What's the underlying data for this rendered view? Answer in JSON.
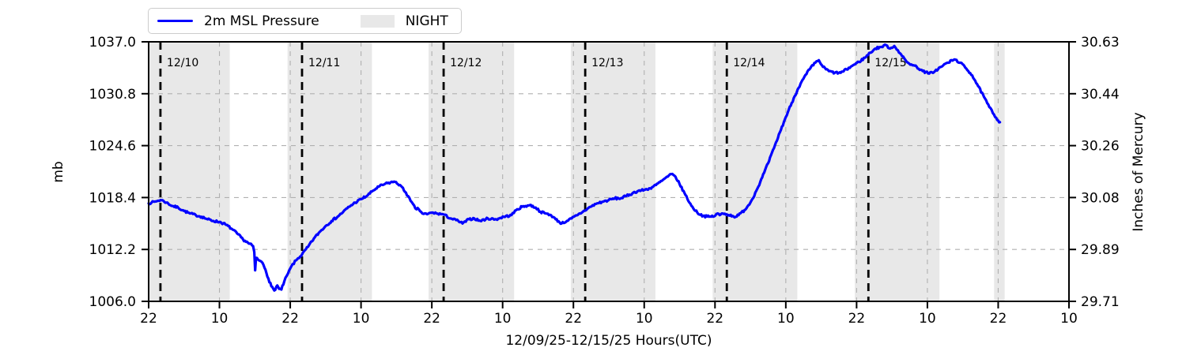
{
  "legend": {
    "series_label": "2m MSL Pressure",
    "night_label": "NIGHT"
  },
  "axes": {
    "left_label": "mb",
    "right_label": "Inches of Mercury",
    "x_label": "12/09/25-12/15/25  Hours(UTC)"
  },
  "style": {
    "line_color": "#0000ff",
    "night_color": "#e8e8e8",
    "grid_color": "#b0b0b0",
    "day_line_color": "#000000",
    "day_label_color": "#3d3d3d",
    "spine_color": "#000000"
  },
  "chart_data": {
    "type": "line",
    "title": "",
    "xlabel": "12/09/25-12/15/25  Hours(UTC)",
    "ylabel_left": "mb",
    "ylabel_right": "Inches of Mercury",
    "x_unit": "hours since 2025-12-09 22:00 UTC",
    "xlim": [
      0,
      156
    ],
    "ylim_mb": [
      1006.0,
      1037.0
    ],
    "ylim_inhg": [
      29.71,
      30.63
    ],
    "grid": true,
    "legend_position": "top-left",
    "x_ticks": [
      {
        "t": 0,
        "label": "22"
      },
      {
        "t": 12,
        "label": "10"
      },
      {
        "t": 24,
        "label": "22"
      },
      {
        "t": 36,
        "label": "10"
      },
      {
        "t": 48,
        "label": "22"
      },
      {
        "t": 60,
        "label": "10"
      },
      {
        "t": 72,
        "label": "22"
      },
      {
        "t": 84,
        "label": "10"
      },
      {
        "t": 96,
        "label": "22"
      },
      {
        "t": 108,
        "label": "10"
      },
      {
        "t": 120,
        "label": "22"
      },
      {
        "t": 132,
        "label": "10"
      },
      {
        "t": 144,
        "label": "22"
      },
      {
        "t": 156,
        "label": "10"
      }
    ],
    "y_ticks": [
      {
        "mb": 1006.0,
        "mb_label": "1006.0",
        "inhg_label": "29.71"
      },
      {
        "mb": 1012.2,
        "mb_label": "1012.2",
        "inhg_label": "29.89"
      },
      {
        "mb": 1018.4,
        "mb_label": "1018.4",
        "inhg_label": "30.08"
      },
      {
        "mb": 1024.6,
        "mb_label": "1024.6",
        "inhg_label": "30.26"
      },
      {
        "mb": 1030.8,
        "mb_label": "1030.8",
        "inhg_label": "30.44"
      },
      {
        "mb": 1037.0,
        "mb_label": "1037.0",
        "inhg_label": "30.63"
      }
    ],
    "day_lines": [
      {
        "t": 2,
        "label": "12/10"
      },
      {
        "t": 26,
        "label": "12/11"
      },
      {
        "t": 50,
        "label": "12/12"
      },
      {
        "t": 74,
        "label": "12/13"
      },
      {
        "t": 98,
        "label": "12/14"
      },
      {
        "t": 122,
        "label": "12/15"
      }
    ],
    "night_spans": [
      [
        0,
        13.75
      ],
      [
        23.55,
        37.85
      ],
      [
        47.45,
        61.95
      ],
      [
        71.55,
        85.9
      ],
      [
        95.6,
        109.95
      ],
      [
        119.7,
        134.05
      ],
      [
        143.3,
        145.1
      ]
    ],
    "series": [
      {
        "name": "2m MSL Pressure",
        "color": "#0000ff",
        "points": [
          [
            0,
            1017.7
          ],
          [
            0.5,
            1017.8
          ],
          [
            1,
            1017.9
          ],
          [
            1.5,
            1018.0
          ],
          [
            2,
            1018.1
          ],
          [
            2.5,
            1018.0
          ],
          [
            3,
            1017.8
          ],
          [
            4,
            1017.4
          ],
          [
            5,
            1017.2
          ],
          [
            6,
            1016.8
          ],
          [
            7,
            1016.5
          ],
          [
            8,
            1016.3
          ],
          [
            9,
            1016.1
          ],
          [
            10,
            1015.8
          ],
          [
            11,
            1015.6
          ],
          [
            12,
            1015.5
          ],
          [
            13,
            1015.2
          ],
          [
            14,
            1014.7
          ],
          [
            15,
            1014.1
          ],
          [
            16,
            1013.4
          ],
          [
            17,
            1012.9
          ],
          [
            17.7,
            1012.6
          ],
          [
            17.9,
            1011.9
          ],
          [
            18.05,
            1009.7
          ],
          [
            18.2,
            1011.2
          ],
          [
            18.7,
            1010.9
          ],
          [
            19.3,
            1010.6
          ],
          [
            19.8,
            1009.8
          ],
          [
            20.3,
            1008.7
          ],
          [
            20.8,
            1007.8
          ],
          [
            21.3,
            1007.3
          ],
          [
            21.8,
            1007.9
          ],
          [
            22.1,
            1007.5
          ],
          [
            22.5,
            1007.4
          ],
          [
            23,
            1008.4
          ],
          [
            23.6,
            1009.3
          ],
          [
            24.2,
            1010.2
          ],
          [
            25,
            1010.9
          ],
          [
            26,
            1011.6
          ],
          [
            27,
            1012.5
          ],
          [
            28,
            1013.5
          ],
          [
            29,
            1014.3
          ],
          [
            30,
            1015.0
          ],
          [
            31,
            1015.6
          ],
          [
            32,
            1016.1
          ],
          [
            33,
            1016.7
          ],
          [
            34,
            1017.3
          ],
          [
            35,
            1017.8
          ],
          [
            36,
            1018.2
          ],
          [
            37,
            1018.6
          ],
          [
            38,
            1019.2
          ],
          [
            39,
            1019.7
          ],
          [
            40,
            1020.0
          ],
          [
            41,
            1020.2
          ],
          [
            41.6,
            1020.3
          ],
          [
            42.6,
            1019.9
          ],
          [
            43.6,
            1019.0
          ],
          [
            44.4,
            1018.0
          ],
          [
            45.2,
            1017.1
          ],
          [
            45.8,
            1017.0
          ],
          [
            46.4,
            1016.5
          ],
          [
            47.2,
            1016.4
          ],
          [
            48,
            1016.6
          ],
          [
            48.8,
            1016.5
          ],
          [
            49.9,
            1016.4
          ],
          [
            51.2,
            1015.9
          ],
          [
            52.5,
            1015.6
          ],
          [
            53.2,
            1015.3
          ],
          [
            54.3,
            1015.8
          ],
          [
            55.2,
            1015.9
          ],
          [
            56.2,
            1015.6
          ],
          [
            57.5,
            1015.9
          ],
          [
            58.9,
            1015.8
          ],
          [
            60.2,
            1016.1
          ],
          [
            61.5,
            1016.3
          ],
          [
            62.3,
            1016.9
          ],
          [
            63.3,
            1017.3
          ],
          [
            64.6,
            1017.5
          ],
          [
            65.6,
            1017.2
          ],
          [
            66.4,
            1016.7
          ],
          [
            67.3,
            1016.5
          ],
          [
            68.2,
            1016.3
          ],
          [
            69,
            1015.8
          ],
          [
            70,
            1015.3
          ],
          [
            70.9,
            1015.6
          ],
          [
            71.7,
            1015.9
          ],
          [
            72.7,
            1016.3
          ],
          [
            73.6,
            1016.7
          ],
          [
            74.9,
            1017.3
          ],
          [
            76,
            1017.7
          ],
          [
            77,
            1017.9
          ],
          [
            78,
            1018.1
          ],
          [
            79,
            1018.3
          ],
          [
            80,
            1018.3
          ],
          [
            81,
            1018.6
          ],
          [
            82,
            1018.9
          ],
          [
            83,
            1019.2
          ],
          [
            84,
            1019.3
          ],
          [
            85,
            1019.5
          ],
          [
            86,
            1019.9
          ],
          [
            87,
            1020.4
          ],
          [
            88,
            1020.9
          ],
          [
            88.6,
            1021.2
          ],
          [
            89.3,
            1020.9
          ],
          [
            90,
            1020.0
          ],
          [
            91,
            1018.7
          ],
          [
            92,
            1017.4
          ],
          [
            93,
            1016.6
          ],
          [
            94,
            1016.2
          ],
          [
            95,
            1016.1
          ],
          [
            96,
            1016.2
          ],
          [
            96.4,
            1016.5
          ],
          [
            96.8,
            1016.3
          ],
          [
            97.3,
            1016.5
          ],
          [
            98,
            1016.4
          ],
          [
            99,
            1016.2
          ],
          [
            99.5,
            1016.1
          ],
          [
            100,
            1016.3
          ],
          [
            101,
            1016.9
          ],
          [
            102,
            1017.8
          ],
          [
            103,
            1019.2
          ],
          [
            104,
            1020.8
          ],
          [
            105,
            1022.5
          ],
          [
            106,
            1024.3
          ],
          [
            107,
            1026.2
          ],
          [
            108,
            1028.0
          ],
          [
            109,
            1029.7
          ],
          [
            110,
            1031.3
          ],
          [
            111,
            1032.6
          ],
          [
            112,
            1033.7
          ],
          [
            113,
            1034.5
          ],
          [
            113.6,
            1034.8
          ],
          [
            114.3,
            1034.0
          ],
          [
            115.3,
            1033.5
          ],
          [
            116.3,
            1033.3
          ],
          [
            117.3,
            1033.3
          ],
          [
            118.3,
            1033.7
          ],
          [
            119.4,
            1034.2
          ],
          [
            120.4,
            1034.6
          ],
          [
            121.4,
            1035.1
          ],
          [
            122.3,
            1035.7
          ],
          [
            123.2,
            1036.2
          ],
          [
            124.2,
            1036.4
          ],
          [
            125,
            1036.6
          ],
          [
            125.7,
            1036.2
          ],
          [
            126.4,
            1036.5
          ],
          [
            127,
            1036.0
          ],
          [
            127.7,
            1035.3
          ],
          [
            128.5,
            1034.6
          ],
          [
            129.3,
            1034.3
          ],
          [
            130.2,
            1034.0
          ],
          [
            131.2,
            1033.5
          ],
          [
            132.3,
            1033.2
          ],
          [
            133.3,
            1033.5
          ],
          [
            134.3,
            1034.0
          ],
          [
            135.4,
            1034.5
          ],
          [
            136.6,
            1034.9
          ],
          [
            137.6,
            1034.5
          ],
          [
            138.6,
            1033.8
          ],
          [
            139.6,
            1033.0
          ],
          [
            140.6,
            1031.7
          ],
          [
            141.6,
            1030.4
          ],
          [
            142.5,
            1029.2
          ],
          [
            143.3,
            1028.3
          ],
          [
            144,
            1027.6
          ],
          [
            144.3,
            1027.4
          ]
        ]
      }
    ]
  }
}
